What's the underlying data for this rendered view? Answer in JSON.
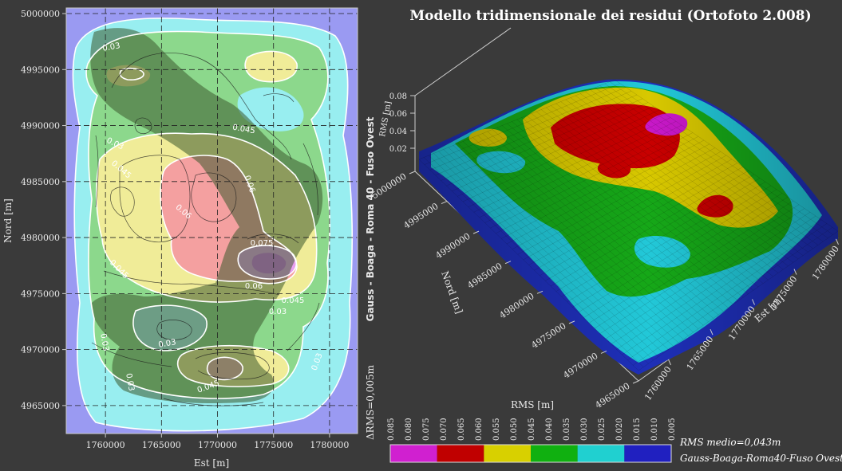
{
  "title": "Modello tridimensionale dei residui (Ortofoto 2.008)",
  "chart_data": [
    {
      "type": "heatmap",
      "subtype": "contour-map",
      "xlabel": "Est [m]",
      "ylabel": "Nord [m]",
      "right_label": "Gauss - Boaga - Roma 40 - Fuso Ovest",
      "interval_label": "ΔRMS=0,005m",
      "x_ticks": [
        1760000,
        1765000,
        1770000,
        1775000,
        1780000
      ],
      "y_ticks": [
        4965000,
        4970000,
        4975000,
        4980000,
        4985000,
        4990000,
        4995000,
        5000000
      ],
      "xlim": [
        1756500,
        1782500
      ],
      "ylim": [
        4962500,
        5000500
      ],
      "grid": true,
      "contour_labels": [
        "0.03",
        "0.045",
        "0.03",
        "0.045",
        "0.06",
        "0.06",
        "0.075",
        "0.06",
        "0.045",
        "0.045",
        "0.03",
        "0.03",
        "0.045",
        "0.03",
        "0.03",
        "0.03"
      ],
      "peaks": [
        {
          "x": 1774000,
          "y": 4977800,
          "value": 0.085
        },
        {
          "x": 1770800,
          "y": 4968200,
          "value": 0.07
        },
        {
          "x": 1762500,
          "y": 4994800,
          "value": 0.06
        },
        {
          "x": 1775000,
          "y": 4995500,
          "value": 0.05
        },
        {
          "x": 1769500,
          "y": 4983500,
          "value": 0.065
        },
        {
          "x": 1761500,
          "y": 4981000,
          "value": 0.05
        },
        {
          "x": 1766000,
          "y": 4972000,
          "value": 0.035
        },
        {
          "x": 1776000,
          "y": 4988500,
          "value": 0.04
        }
      ]
    },
    {
      "type": "surface",
      "zlabel": "RMS [m]",
      "ylabel": "Nord [m]",
      "xlabel": "Est [m]",
      "z_ticks": [
        0.02,
        0.04,
        0.06,
        0.08
      ],
      "y_ticks": [
        4965000,
        4970000,
        4975000,
        4980000,
        4985000,
        4990000,
        4995000,
        5000000
      ],
      "x_ticks": [
        1760000,
        1765000,
        1770000,
        1775000,
        1780000
      ]
    }
  ],
  "legend": {
    "title": "RMS [m]",
    "ticks": [
      "0.085",
      "0.080",
      "0.075",
      "0.070",
      "0.065",
      "0.060",
      "0.055",
      "0.050",
      "0.045",
      "0.040",
      "0.035",
      "0.030",
      "0.025",
      "0.020",
      "0.015",
      "0.010",
      "0.005"
    ],
    "colors": [
      "#d020d0",
      "#c00000",
      "#d8d000",
      "#10b010",
      "#20d0d0",
      "#2020c0"
    ],
    "mean_label": "RMS medio=0,043m",
    "datum_label": "Gauss-Boaga-Roma40-Fuso Ovest"
  }
}
